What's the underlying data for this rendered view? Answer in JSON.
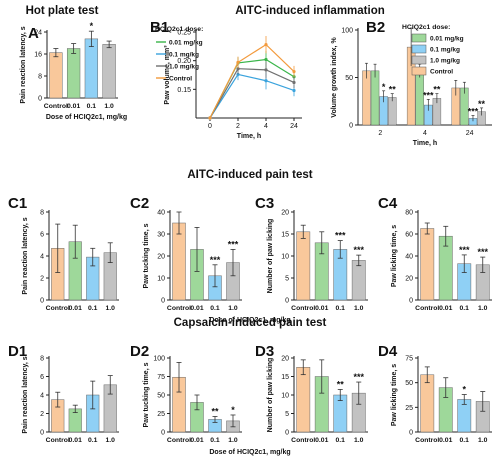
{
  "sections": {
    "hot_plate": "Hot plate test",
    "aitc_inflammation": "AITC-induced inflammation",
    "aitc_pain": "AITC-induced pain test",
    "capsaicin_pain": "Capsaicin-induced pain test"
  },
  "legend_title": "HCIQ2c1 dose:",
  "colors": {
    "control": "#f9c89b",
    "d001": "#9ed89a",
    "d01": "#8fd0f5",
    "d10": "#c2c2c2",
    "control_line": "#f39a3c",
    "d001_line": "#3ab54a",
    "d01_line": "#3aa3dd",
    "d10_line": "#707070"
  },
  "chart_data": [
    {
      "id": "A",
      "label": "A",
      "type": "bar",
      "categories": [
        "Control",
        "0.01",
        "0.1",
        "1.0"
      ],
      "values": [
        16.5,
        18,
        21.5,
        19.5
      ],
      "errors": [
        1.5,
        1.8,
        2.8,
        1.2
      ],
      "stars": [
        "",
        "",
        "*",
        ""
      ],
      "ylim": [
        0,
        24
      ],
      "yticks": [
        0,
        8,
        16,
        24
      ],
      "ylabel": "Pain reaction latency, s",
      "xlabel": "Dose of HCIQ2c1, mg/kg"
    },
    {
      "id": "B1",
      "label": "B1",
      "type": "line",
      "x": [
        0,
        2,
        4,
        24
      ],
      "xticks": [
        "0",
        "2",
        "4",
        "24"
      ],
      "series": [
        {
          "name": "0.01 mg/kg",
          "values": [
            0.1,
            0.196,
            0.202,
            0.172
          ],
          "key": "d001"
        },
        {
          "name": "0.1 mg/kg",
          "values": [
            0.1,
            0.176,
            0.165,
            0.148
          ],
          "key": "d01"
        },
        {
          "name": "1.0 mg/kg",
          "values": [
            0.1,
            0.186,
            0.184,
            0.162
          ],
          "key": "d10"
        },
        {
          "name": "Control",
          "values": [
            0.1,
            0.197,
            0.228,
            0.181
          ],
          "key": "control"
        }
      ],
      "errors": [
        0.003,
        0.01,
        0.015,
        0.01
      ],
      "ylim": [
        0.1,
        0.25
      ],
      "yticks": [
        0.15,
        0.2,
        0.25
      ],
      "ytick_labels": [
        "0.15",
        "0.20",
        "0.25"
      ],
      "ylabel": "Paw volume, mm³",
      "xlabel": "Time, h"
    },
    {
      "id": "B2",
      "label": "B2",
      "type": "bar",
      "groups": [
        "2",
        "4",
        "24"
      ],
      "series": [
        {
          "name": "Control",
          "key": "control",
          "values": [
            57,
            82,
            39
          ],
          "errors": [
            8,
            20,
            8
          ]
        },
        {
          "name": "0.01 mg/kg",
          "key": "d001",
          "values": [
            57,
            57,
            39
          ],
          "errors": [
            7,
            7,
            6
          ]
        },
        {
          "name": "0.1 mg/kg",
          "key": "d01",
          "values": [
            30,
            21,
            7
          ],
          "errors": [
            6,
            6,
            3
          ]
        },
        {
          "name": "1.0 mg/kg",
          "key": "d10",
          "values": [
            29,
            28,
            14
          ],
          "errors": [
            4,
            5,
            4
          ]
        }
      ],
      "stars": [
        [
          "",
          "",
          "*",
          "**"
        ],
        [
          "",
          "",
          "***",
          "**"
        ],
        [
          "",
          "",
          "***",
          "**"
        ]
      ],
      "ylim": [
        0,
        100
      ],
      "yticks": [
        0,
        50,
        100
      ],
      "ylabel": "Volume growth index, %",
      "xlabel": "Time, h"
    },
    {
      "id": "C1",
      "label": "C1",
      "type": "bar",
      "categories": [
        "Control",
        "0.01",
        "0.1",
        "1.0"
      ],
      "values": [
        4.7,
        5.3,
        3.9,
        4.3
      ],
      "errors": [
        2.2,
        1.5,
        0.8,
        0.9
      ],
      "stars": [
        "",
        "",
        "",
        ""
      ],
      "ylim": [
        0,
        8
      ],
      "yticks": [
        0,
        2,
        4,
        6,
        8
      ],
      "ylabel": "Pain reaction latency, s"
    },
    {
      "id": "C2",
      "label": "C2",
      "type": "bar",
      "categories": [
        "Control",
        "0.01",
        "0.1",
        "1.0"
      ],
      "values": [
        35,
        23,
        11,
        17
      ],
      "errors": [
        5,
        10,
        5,
        6
      ],
      "stars": [
        "",
        "",
        "***",
        "***"
      ],
      "ylim": [
        0,
        40
      ],
      "yticks": [
        0,
        10,
        20,
        30,
        40
      ],
      "ylabel": "Paw tucking time, s"
    },
    {
      "id": "C3",
      "label": "C3",
      "type": "bar",
      "categories": [
        "Control",
        "0.01",
        "0.1",
        "1.0"
      ],
      "values": [
        15.5,
        13,
        11.5,
        9
      ],
      "errors": [
        1.5,
        2.5,
        2.0,
        1.2
      ],
      "stars": [
        "",
        "",
        "***",
        "***"
      ],
      "ylim": [
        0,
        20
      ],
      "yticks": [
        0,
        5,
        10,
        15,
        20
      ],
      "ylabel": "Number of paw licking"
    },
    {
      "id": "C4",
      "label": "C4",
      "type": "bar",
      "categories": [
        "Control",
        "0.01",
        "0.1",
        "1.0"
      ],
      "values": [
        65,
        58,
        33,
        32
      ],
      "errors": [
        5,
        9,
        8,
        7
      ],
      "stars": [
        "",
        "",
        "***",
        "***"
      ],
      "ylim": [
        0,
        80
      ],
      "yticks": [
        0,
        20,
        40,
        60,
        80
      ],
      "ylabel": "Paw licking time, s"
    },
    {
      "id": "D1",
      "label": "D1",
      "type": "bar",
      "categories": [
        "Control",
        "0.01",
        "0.1",
        "1.0"
      ],
      "values": [
        3.5,
        2.5,
        4.0,
        5.1
      ],
      "errors": [
        0.8,
        0.4,
        1.5,
        1.0
      ],
      "stars": [
        "",
        "",
        "",
        ""
      ],
      "ylim": [
        0,
        8
      ],
      "yticks": [
        0,
        2,
        4,
        6,
        8
      ],
      "ylabel": "Pain reaction latency, s"
    },
    {
      "id": "D2",
      "label": "D2",
      "type": "bar",
      "categories": [
        "Control",
        "0.01",
        "0.1",
        "1.0"
      ],
      "values": [
        74,
        40,
        17,
        15
      ],
      "errors": [
        20,
        10,
        4,
        8
      ],
      "stars": [
        "",
        "",
        "**",
        "*"
      ],
      "ylim": [
        0,
        100
      ],
      "yticks": [
        0,
        25,
        50,
        75,
        100
      ],
      "ylabel": "Paw tucking time, s"
    },
    {
      "id": "D3",
      "label": "D3",
      "type": "bar",
      "categories": [
        "Control",
        "0.01",
        "0.1",
        "1.0"
      ],
      "values": [
        17.5,
        15,
        10,
        10.5
      ],
      "errors": [
        2.0,
        4.5,
        1.5,
        3.0
      ],
      "stars": [
        "",
        "",
        "**",
        "***"
      ],
      "ylim": [
        0,
        20
      ],
      "yticks": [
        0,
        5,
        10,
        15,
        20
      ],
      "ylabel": "Number of paw licking"
    },
    {
      "id": "D4",
      "label": "D4",
      "type": "bar",
      "categories": [
        "Control",
        "0.01",
        "0.1",
        "1.0"
      ],
      "values": [
        58,
        45,
        33,
        31
      ],
      "errors": [
        8,
        10,
        5,
        10
      ],
      "stars": [
        "",
        "",
        "*",
        ""
      ],
      "ylim": [
        0,
        75
      ],
      "yticks": [
        0,
        25,
        50,
        75
      ],
      "ylabel": "Paw licking time, s"
    }
  ],
  "row_xlabels": {
    "C": "Dose of HCIQ2c1, mg/kg",
    "D": "Dose of HCIQ2c1, mg/kg"
  }
}
